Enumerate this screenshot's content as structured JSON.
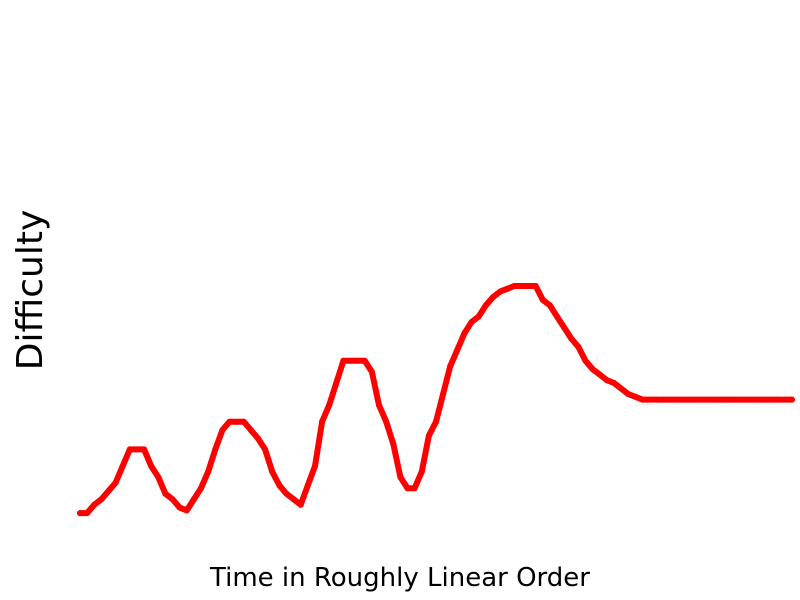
{
  "chart_data": {
    "type": "line",
    "title": "",
    "xlabel": "Time in Roughly Linear Order",
    "ylabel": "Difficulty",
    "grid": false,
    "axes_visible": false,
    "xlim": [
      0,
      100
    ],
    "ylim": [
      0,
      100
    ],
    "series": [
      {
        "color": "#ff0000",
        "x": [
          0,
          1,
          2,
          3,
          4,
          5,
          6,
          7,
          8,
          9,
          10,
          11,
          12,
          13,
          14,
          15,
          16,
          17,
          18,
          19,
          20,
          21,
          22,
          23,
          24,
          25,
          26,
          27,
          28,
          29,
          30,
          31,
          32,
          33,
          34,
          35,
          36,
          37,
          38,
          39,
          40,
          41,
          42,
          43,
          44,
          45,
          46,
          47,
          48,
          49,
          50,
          51,
          52,
          53,
          54,
          55,
          56,
          57,
          58,
          59,
          60,
          61,
          62,
          63,
          64,
          65,
          66,
          67,
          68,
          69,
          70,
          71,
          72,
          73,
          74,
          75,
          76,
          77,
          78,
          79,
          80,
          81,
          82,
          83,
          84,
          85,
          86,
          87,
          88,
          89,
          90,
          91,
          92,
          93,
          94,
          95,
          96,
          97,
          98,
          99,
          100
        ],
        "y": [
          5,
          5,
          8,
          10,
          13,
          16,
          22,
          28,
          28,
          28,
          22,
          18,
          12,
          10,
          7,
          6,
          10,
          14,
          20,
          28,
          35,
          38,
          38,
          38,
          35,
          32,
          28,
          20,
          15,
          12,
          10,
          8,
          15,
          22,
          38,
          44,
          52,
          60,
          60,
          60,
          60,
          56,
          44,
          38,
          30,
          18,
          14,
          14,
          20,
          33,
          38,
          48,
          58,
          64,
          70,
          74,
          76,
          80,
          83,
          85,
          86,
          87,
          87,
          87,
          87,
          82,
          80,
          76,
          72,
          68,
          65,
          60,
          57,
          55,
          53,
          52,
          50,
          48,
          47,
          46,
          46,
          46,
          46,
          46,
          46,
          46,
          46,
          46,
          46,
          46,
          46,
          46,
          46,
          46,
          46,
          46,
          46,
          46,
          46,
          46,
          46
        ]
      }
    ]
  }
}
